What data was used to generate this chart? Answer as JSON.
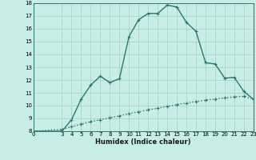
{
  "title": "",
  "xlabel": "Humidex (Indice chaleur)",
  "bg_color": "#c8ece6",
  "line_color": "#2a7a6a",
  "grid_color": "#a0cfc8",
  "x_main": [
    0,
    3,
    4,
    5,
    6,
    7,
    8,
    9,
    10,
    11,
    12,
    13,
    14,
    15,
    16,
    17,
    18,
    19,
    20,
    21,
    22,
    23
  ],
  "y_main": [
    8.0,
    8.0,
    8.9,
    10.5,
    11.6,
    12.3,
    11.8,
    12.1,
    15.4,
    16.7,
    17.2,
    17.2,
    17.85,
    17.7,
    16.5,
    15.8,
    13.35,
    13.25,
    12.15,
    12.2,
    11.1,
    10.5
  ],
  "x_ref": [
    0,
    3,
    4,
    5,
    6,
    7,
    8,
    9,
    10,
    11,
    12,
    13,
    14,
    15,
    16,
    17,
    18,
    19,
    20,
    21,
    22,
    23
  ],
  "y_ref": [
    8.0,
    8.15,
    8.35,
    8.55,
    8.75,
    8.9,
    9.05,
    9.2,
    9.38,
    9.52,
    9.66,
    9.8,
    9.94,
    10.08,
    10.2,
    10.32,
    10.42,
    10.52,
    10.6,
    10.68,
    10.72,
    10.5
  ],
  "xlim": [
    0,
    23
  ],
  "ylim": [
    8,
    18
  ],
  "yticks": [
    8,
    9,
    10,
    11,
    12,
    13,
    14,
    15,
    16,
    17,
    18
  ],
  "xticks": [
    0,
    3,
    4,
    5,
    6,
    7,
    8,
    9,
    10,
    11,
    12,
    13,
    14,
    15,
    16,
    17,
    18,
    19,
    20,
    21,
    22,
    23
  ],
  "marker": "+",
  "marker_size": 3.5,
  "line_width": 1.0
}
